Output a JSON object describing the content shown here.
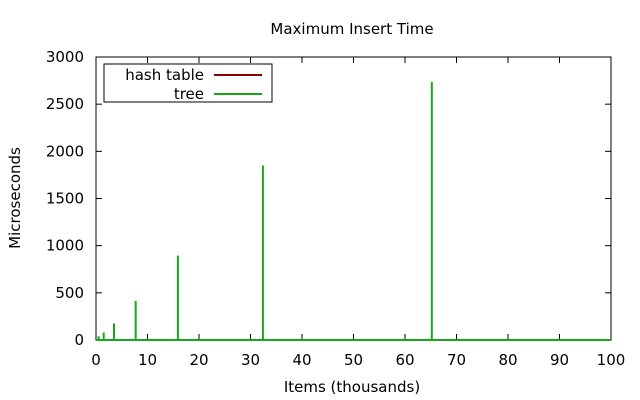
{
  "chart_data": {
    "type": "line",
    "title": "Maximum Insert Time",
    "xlabel": "Items (thousands)",
    "ylabel": "Microseconds",
    "xlim": [
      0,
      100
    ],
    "ylim": [
      0,
      3000
    ],
    "x_ticks": [
      0,
      10,
      20,
      30,
      40,
      50,
      60,
      70,
      80,
      90,
      100
    ],
    "y_ticks": [
      0,
      500,
      1000,
      1500,
      2000,
      2500,
      3000
    ],
    "x_tick_labels": [
      "0",
      "10",
      "20",
      "30",
      "40",
      "50",
      "60",
      "70",
      "80",
      "90",
      "100"
    ],
    "y_tick_labels": [
      "0",
      "500",
      "1000",
      "1500",
      "2000",
      "2500",
      "3000"
    ],
    "grid": false,
    "legend_position": "top-left",
    "series": [
      {
        "name": "hash table",
        "color": "#8b0000",
        "x": [
          0,
          100
        ],
        "y": [
          0,
          0
        ]
      },
      {
        "name": "tree",
        "color": "#1aa51a",
        "x": [
          0,
          0.5,
          0.5,
          0.5,
          1.5,
          1.5,
          1.5,
          3.5,
          3.5,
          3.5,
          7.7,
          7.7,
          7.7,
          15.9,
          15.9,
          15.9,
          32.4,
          32.4,
          32.4,
          65.2,
          65.2,
          65.2,
          100
        ],
        "y": [
          0,
          0,
          40,
          0,
          0,
          80,
          0,
          0,
          175,
          0,
          0,
          415,
          0,
          0,
          895,
          0,
          0,
          1850,
          0,
          0,
          2735,
          0,
          0
        ]
      }
    ]
  }
}
